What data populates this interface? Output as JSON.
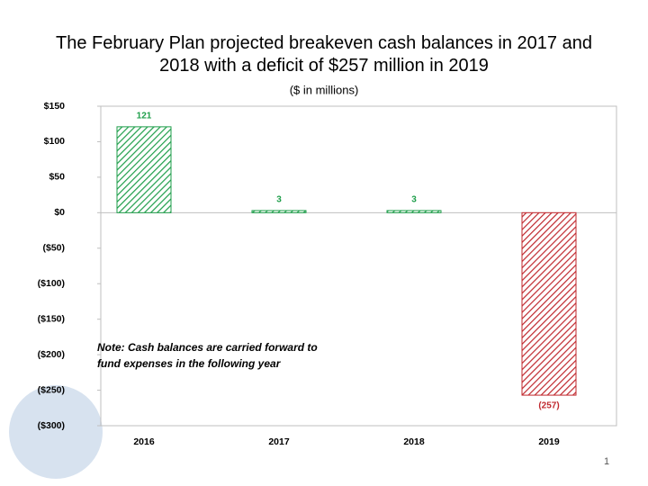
{
  "chart_data": {
    "type": "bar",
    "title": "The February Plan projected breakeven cash balances in 2017 and 2018 with a deficit of $257 million in 2019",
    "subtitle": "($ in millions)",
    "categories": [
      "2016",
      "2017",
      "2018",
      "2019"
    ],
    "values": [
      121,
      3,
      3,
      -257
    ],
    "value_labels": [
      "121",
      "3",
      "3",
      "(257)"
    ],
    "colors": [
      "#1e9e4a",
      "#1e9e4a",
      "#1e9e4a",
      "#c0282e"
    ],
    "ylim": [
      -300,
      150
    ],
    "yticks": [
      {
        "value": -300,
        "label": "($300)"
      },
      {
        "value": -250,
        "label": "($250)"
      },
      {
        "value": -200,
        "label": "($200)"
      },
      {
        "value": -150,
        "label": "($150)"
      },
      {
        "value": -100,
        "label": "($100)"
      },
      {
        "value": -50,
        "label": "($50)"
      },
      {
        "value": 0,
        "label": "$0"
      },
      {
        "value": 50,
        "label": "$50"
      },
      {
        "value": 100,
        "label": "$100"
      },
      {
        "value": 150,
        "label": "$150"
      }
    ],
    "annotation": [
      "Note: Cash balances are carried forward to",
      "fund expenses in the following year"
    ]
  },
  "slide_number": "1"
}
